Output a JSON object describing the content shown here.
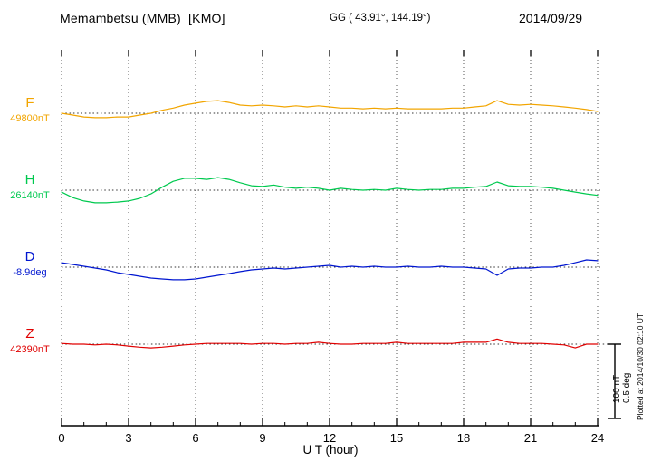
{
  "header": {
    "station": "Memambetsu (MMB)  [KMO]",
    "coordinates": "GG ( 43.91°, 144.19°)",
    "date": "2014/09/29"
  },
  "footer": {
    "plotted_note": "Plotted at 2014/10/30 02:10 UT"
  },
  "scale_bar": {
    "nT_label": "100 nT",
    "deg_label": "0.5 deg"
  },
  "chart_data": {
    "type": "line",
    "title": "Memambetsu (MMB) [KMO] magnetogram 2014/09/29",
    "xlabel": "U T (hour)",
    "xlim": [
      0,
      24
    ],
    "x_ticks": [
      0,
      3,
      6,
      9,
      12,
      15,
      18,
      21,
      24
    ],
    "x_step_hours": 0.5,
    "grid": "dotted vertical lines at 3-hour intervals; dotted horizontal baseline per channel",
    "scale": {
      "nT_per_division": 100,
      "deg_per_division": 0.5
    },
    "series": [
      {
        "name": "F",
        "color": "#f2a500",
        "units": "nT",
        "baseline_label": "49800nT",
        "baseline_value": 49800,
        "offsets": [
          0,
          -2.5,
          -5,
          -6,
          -6,
          -5,
          -5,
          -2.5,
          0,
          4,
          7,
          11,
          13.5,
          16,
          17,
          14.5,
          11,
          10,
          11,
          10,
          8.5,
          10,
          8.5,
          10,
          8.5,
          7,
          7,
          6,
          7,
          6,
          7,
          6,
          6,
          6,
          6,
          7,
          7,
          8.5,
          10,
          17,
          12,
          11,
          12,
          11,
          10,
          8.5,
          7,
          5,
          2.5
        ]
      },
      {
        "name": "H",
        "color": "#00c94f",
        "units": "nT",
        "baseline_label": "26140nT",
        "baseline_value": 26140,
        "offsets": [
          -2.5,
          -10,
          -14.5,
          -17,
          -17,
          -16,
          -14.5,
          -11,
          -5,
          4,
          12,
          16,
          16,
          14.5,
          17,
          14.5,
          10,
          6,
          5,
          7,
          4,
          2.5,
          4,
          2.5,
          0,
          2.5,
          1,
          0,
          1,
          0,
          2.5,
          1,
          0,
          1,
          1,
          2.5,
          2.5,
          4,
          5,
          11,
          6,
          5,
          5,
          4,
          2.5,
          0,
          -2.5,
          -5,
          -7
        ]
      },
      {
        "name": "D",
        "color": "#0016d0",
        "units": "deg",
        "baseline_label": "-8.9deg",
        "baseline_value": -8.9,
        "offsets": [
          0.03,
          0.018,
          0.006,
          -0.006,
          -0.018,
          -0.037,
          -0.049,
          -0.061,
          -0.073,
          -0.079,
          -0.085,
          -0.085,
          -0.079,
          -0.067,
          -0.055,
          -0.043,
          -0.03,
          -0.018,
          -0.012,
          -0.006,
          -0.012,
          -0.006,
          0,
          0.006,
          0.012,
          0,
          0.006,
          0,
          0.006,
          0,
          0,
          0.006,
          0,
          0,
          0.006,
          0,
          0,
          -0.006,
          -0.012,
          -0.055,
          -0.012,
          -0.006,
          -0.006,
          0,
          0,
          0.012,
          0.03,
          0.049,
          0.043
        ]
      },
      {
        "name": "Z",
        "color": "#e00000",
        "units": "nT",
        "baseline_label": "42390nT",
        "baseline_value": 42390,
        "offsets": [
          1,
          0,
          0,
          -1,
          0,
          -1,
          -2.5,
          -4,
          -5,
          -4,
          -2.5,
          -1,
          0,
          1,
          1,
          1,
          1,
          0,
          1,
          1,
          0,
          1,
          1,
          2.5,
          1,
          0,
          0,
          1,
          1,
          1,
          2.5,
          1,
          1,
          1,
          1,
          1,
          2.5,
          2.5,
          2.5,
          7,
          2.5,
          1,
          1,
          1,
          0,
          -1,
          -5,
          0,
          0
        ]
      }
    ]
  }
}
